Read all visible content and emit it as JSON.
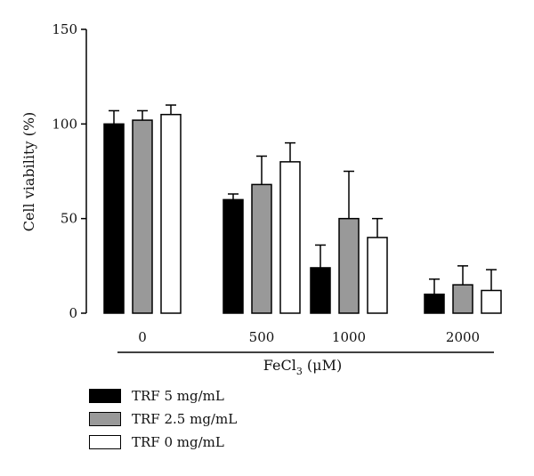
{
  "chart_data": {
    "type": "bar",
    "title": "",
    "ylabel": "Cell viability (%)",
    "xlabel_main": "FeCl",
    "xlabel_sub": "3",
    "xlabel_unit": " (μM)",
    "categories": [
      "0",
      "500",
      "1000",
      "2000"
    ],
    "ylim": [
      0,
      150
    ],
    "yticks": [
      0,
      50,
      100,
      150
    ],
    "series": [
      {
        "name": "TRF 5 mg/mL",
        "color": "#000000",
        "values": [
          100,
          60,
          24,
          10
        ],
        "errors": [
          7,
          3,
          12,
          8
        ]
      },
      {
        "name": "TRF 2.5 mg/mL",
        "color": "#999999",
        "values": [
          102,
          68,
          50,
          15
        ],
        "errors": [
          5,
          15,
          25,
          10
        ]
      },
      {
        "name": "TRF 0 mg/mL",
        "color": "#ffffff",
        "values": [
          105,
          80,
          40,
          12
        ],
        "errors": [
          5,
          10,
          10,
          11
        ]
      }
    ],
    "legend_position": "bottom-left",
    "grid": false
  }
}
